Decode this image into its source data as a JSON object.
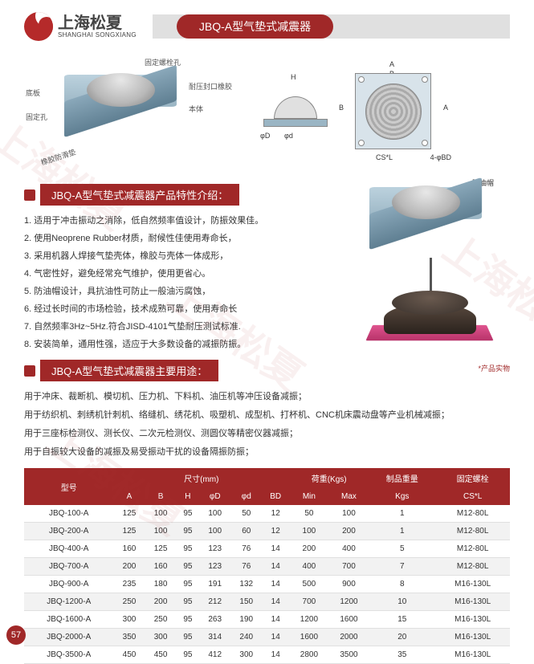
{
  "brand": {
    "cn": "上海松夏",
    "en": "SHANGHAI SONGXIANG"
  },
  "title": "JBQ-A型气垫式减震器",
  "colors": {
    "primary": "#a02828",
    "hdr_bg": "#a02828",
    "row_alt": "#f2f2f2",
    "text": "#333333"
  },
  "diagram_labels": {
    "top_bolt": "固定螺栓孔",
    "bottom_plate": "底板",
    "fix_hole": "固定孔",
    "rubber": "耐压封口橡胶",
    "body": "本体",
    "rubber_pad": "橡胶防滑垫",
    "oil_cap_top": "防油帽",
    "H": "H",
    "D": "φD",
    "d": "φd",
    "A": "A",
    "B": "B",
    "CSL": "CS*L",
    "BD": "4-φBD"
  },
  "section1": "JBQ-A型气垫式减震器产品特性介绍：",
  "features": [
    "1. 适用于冲击振动之消除，低自然频率值设计，防振效果佳。",
    "2. 使用Neoprene Rubber材质，耐候性佳使用寿命长，",
    "3. 采用机器人焊接气垫壳体，橡胶与壳体一体成形，",
    "4. 气密性好，避免经常充气维护，使用更省心。",
    "5. 防油帽设计，具抗油性可防止一般油污腐蚀，",
    "6. 经过长时间的市场检验，技术成熟可靠，使用寿命长",
    "7. 自然频率3Hz~5Hz.符合JISD-4101气垫耐压测试标准.",
    "8. 安装简单，通用性强，适应于大多数设备的减振防振。"
  ],
  "section2": "JBQ-A型气垫式减震器主要用途：",
  "usages": [
    "用于冲床、裁断机、模切机、压力机、下料机、油压机等冲压设备减振；",
    "用于纺织机、刺绣机针刺机、络缝机、绣花机、吸塑机、成型机、打杯机、CNC机床震动盘等产业机械减振；",
    "用于三座标检测仪、测长仪、二次元检测仪、测圆仪等精密仪器减振；",
    "用于自振较大设备的减振及易受振动干扰的设备隔振防振；"
  ],
  "photo_caption": "*产品实物",
  "table": {
    "hdr_model": "型号",
    "hdr_size": "尺寸(mm)",
    "hdr_load": "荷重(Kgs)",
    "hdr_weight": "制品重量",
    "hdr_bolt": "固定螺栓",
    "cols": [
      "A",
      "B",
      "H",
      "φD",
      "φd",
      "BD",
      "Min",
      "Max",
      "Kgs",
      "CS*L"
    ],
    "rows": [
      [
        "JBQ-100-A",
        125,
        100,
        95,
        100,
        50,
        12,
        50,
        100,
        1,
        "M12-80L"
      ],
      [
        "JBQ-200-A",
        125,
        100,
        95,
        100,
        60,
        12,
        100,
        200,
        1,
        "M12-80L"
      ],
      [
        "JBQ-400-A",
        160,
        125,
        95,
        123,
        76,
        14,
        200,
        400,
        5,
        "M12-80L"
      ],
      [
        "JBQ-700-A",
        200,
        160,
        95,
        123,
        76,
        14,
        400,
        700,
        7,
        "M12-80L"
      ],
      [
        "JBQ-900-A",
        235,
        180,
        95,
        191,
        132,
        14,
        500,
        900,
        8,
        "M16-130L"
      ],
      [
        "JBQ-1200-A",
        250,
        200,
        95,
        212,
        150,
        14,
        700,
        1200,
        10,
        "M16-130L"
      ],
      [
        "JBQ-1600-A",
        300,
        250,
        95,
        263,
        190,
        14,
        1200,
        1600,
        15,
        "M16-130L"
      ],
      [
        "JBQ-2000-A",
        350,
        300,
        95,
        314,
        240,
        14,
        1600,
        2000,
        20,
        "M16-130L"
      ],
      [
        "JBQ-3500-A",
        450,
        450,
        95,
        412,
        300,
        14,
        2800,
        3500,
        35,
        "M16-130L"
      ]
    ]
  },
  "page_number": "57",
  "watermark": "上海松夏"
}
